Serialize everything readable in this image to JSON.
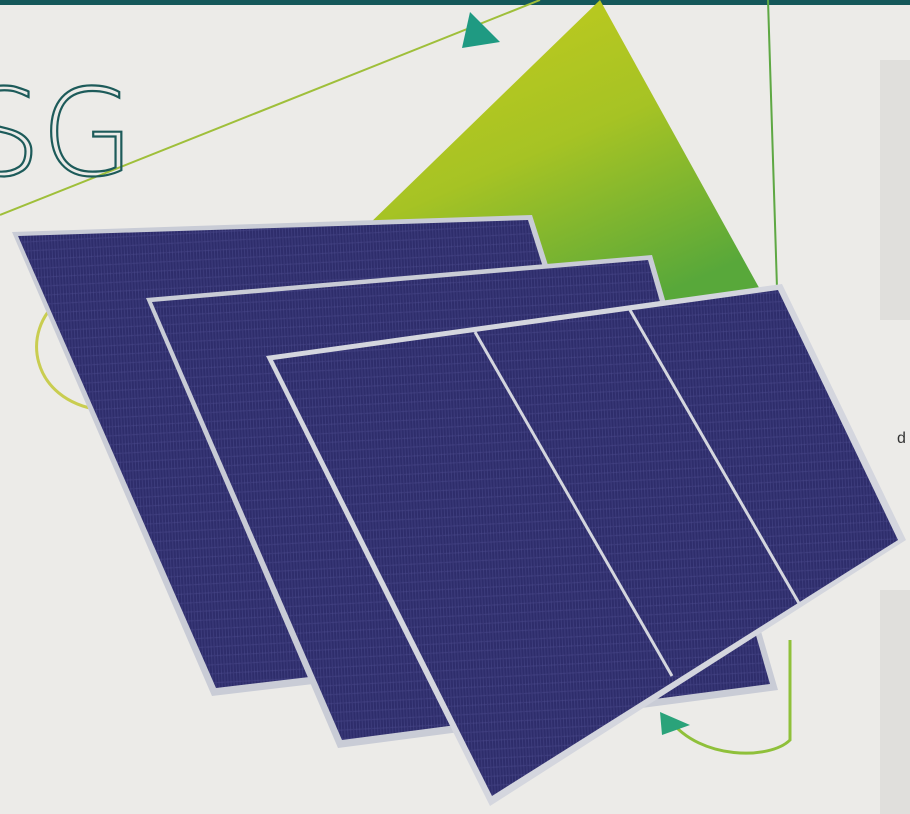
{
  "heading": "SG",
  "side_text": "d"
}
